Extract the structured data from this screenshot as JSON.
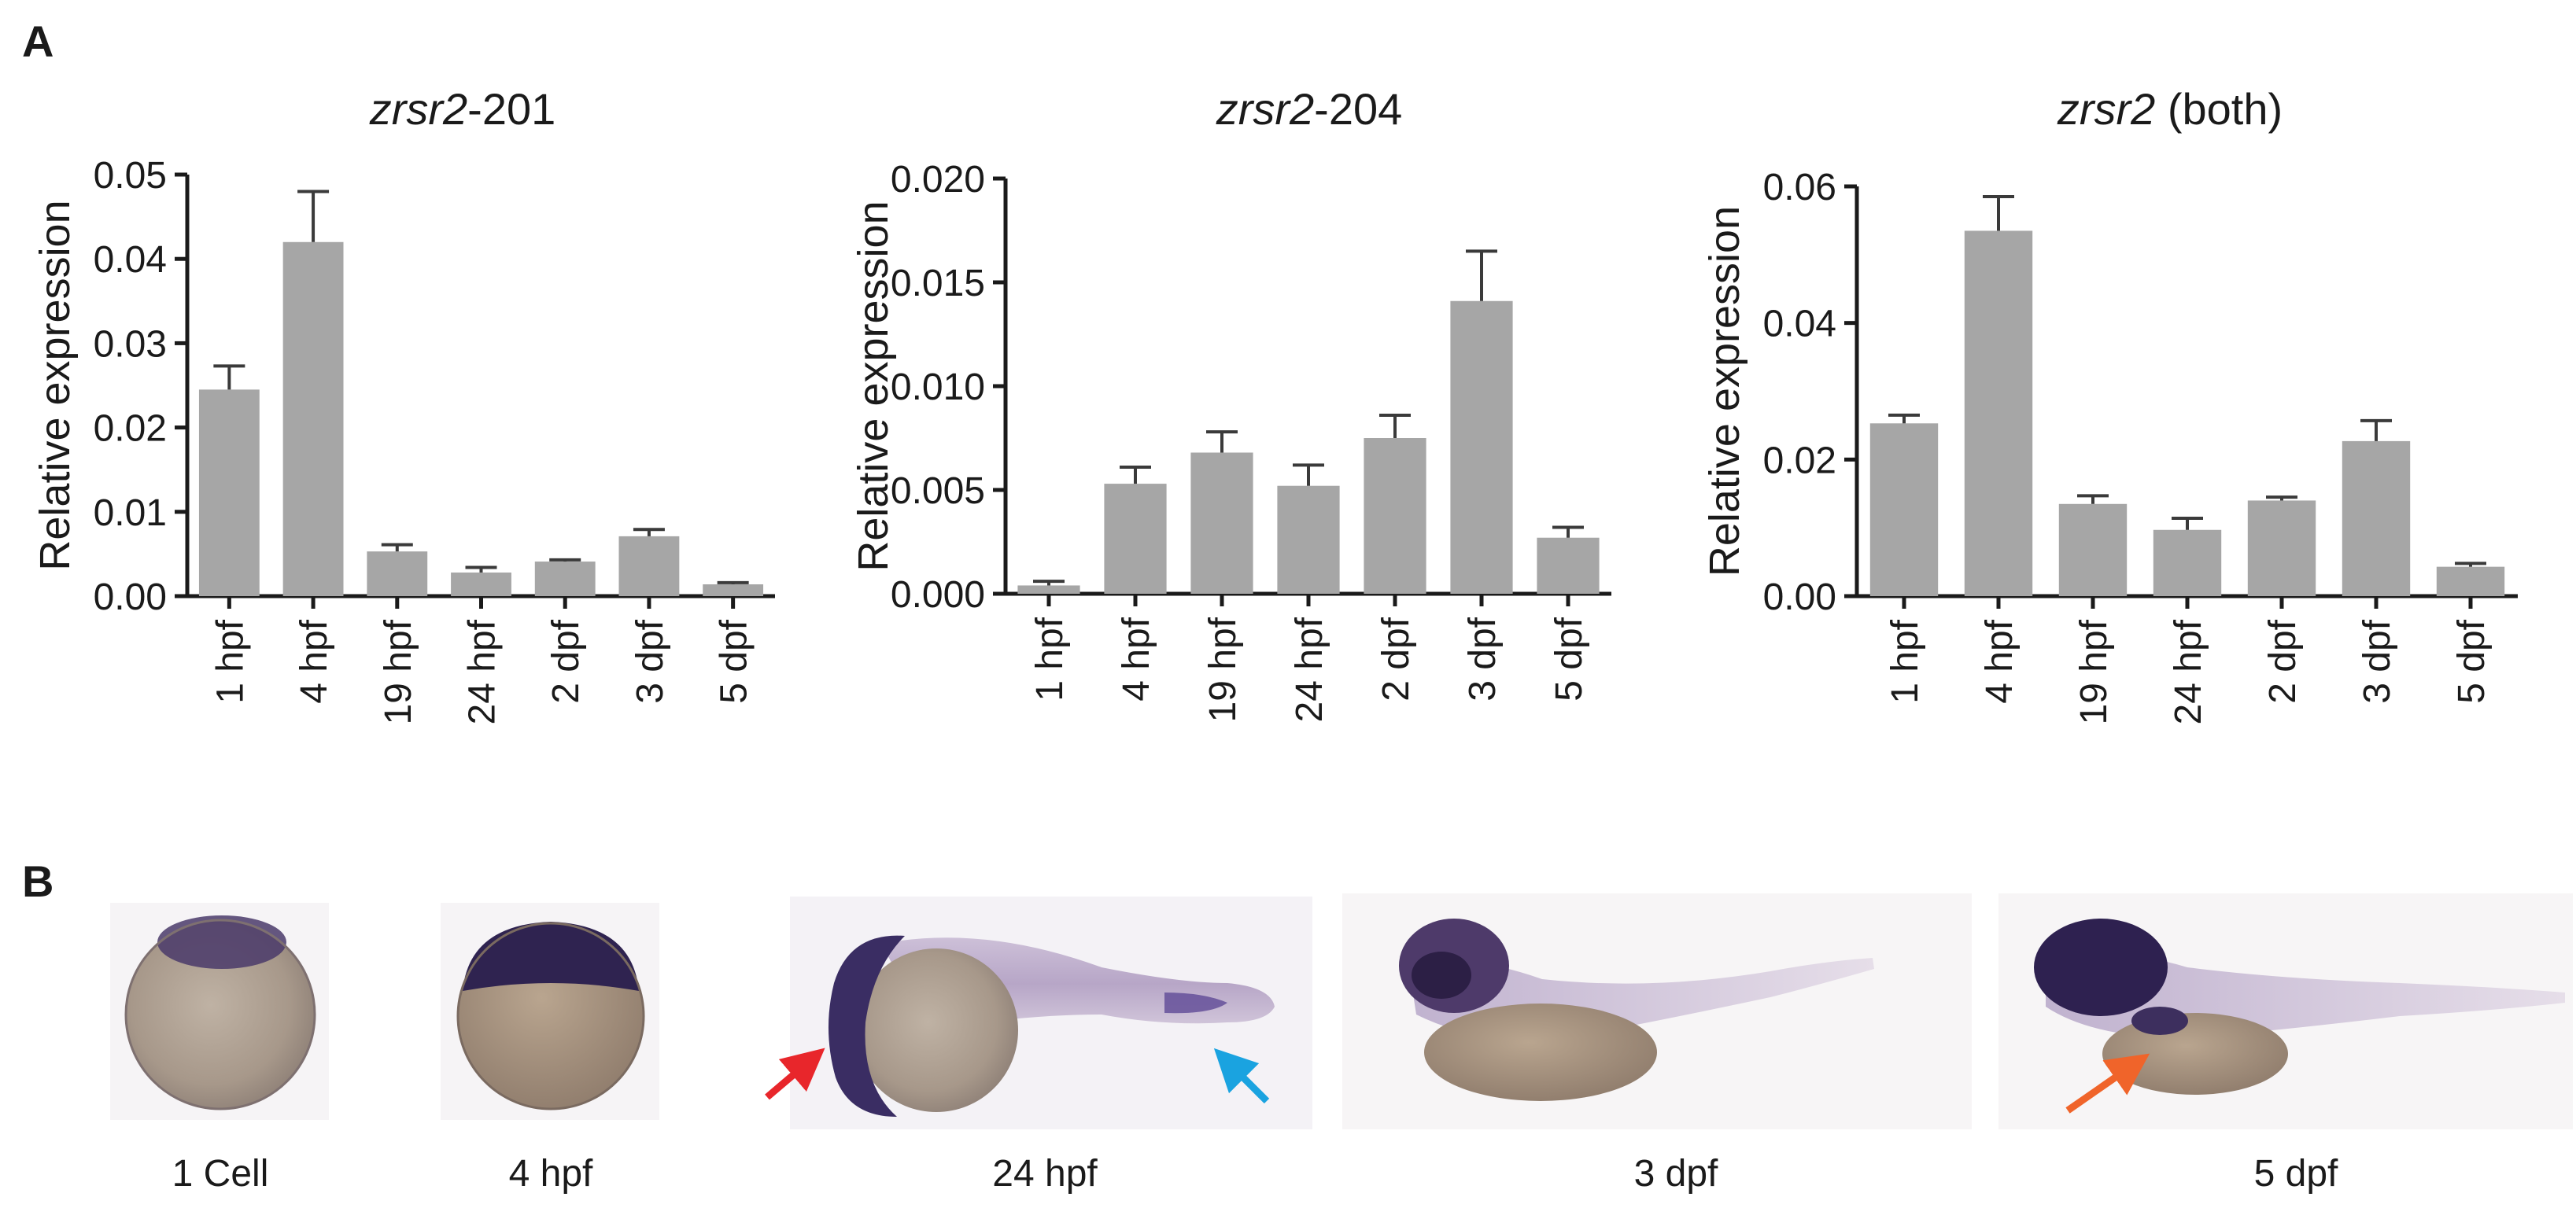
{
  "panels": {
    "a": "A",
    "b": "B"
  },
  "chart_data": [
    {
      "type": "bar",
      "title_italic": "zrsr2",
      "title_rest": "-201",
      "ylabel": "Relative expression",
      "xlabel": "",
      "ylim": [
        0,
        0.05
      ],
      "yticks": [
        "0.00",
        "0.01",
        "0.02",
        "0.03",
        "0.04",
        "0.05"
      ],
      "categories": [
        "1 hpf",
        "4 hpf",
        "19 hpf",
        "24 hpf",
        "2 dpf",
        "3 dpf",
        "5 dpf"
      ],
      "values": [
        0.0245,
        0.042,
        0.0053,
        0.0028,
        0.0041,
        0.0071,
        0.0014
      ],
      "errors": [
        0.0028,
        0.006,
        0.0008,
        0.0006,
        0.0002,
        0.0008,
        0.0002
      ],
      "bar_color": "#a6a6a6"
    },
    {
      "type": "bar",
      "title_italic": "zrsr2",
      "title_rest": "-204",
      "ylabel": "Relative expression",
      "xlabel": "",
      "ylim": [
        0,
        0.02
      ],
      "yticks": [
        "0.000",
        "0.005",
        "0.010",
        "0.015",
        "0.020"
      ],
      "categories": [
        "1 hpf",
        "4 hpf",
        "19 hpf",
        "24 hpf",
        "2 dpf",
        "3 dpf",
        "5 dpf"
      ],
      "values": [
        0.0004,
        0.0053,
        0.0068,
        0.0052,
        0.0075,
        0.0141,
        0.0027
      ],
      "errors": [
        0.0002,
        0.0008,
        0.001,
        0.001,
        0.0011,
        0.0024,
        0.0005
      ],
      "bar_color": "#a6a6a6"
    },
    {
      "type": "bar",
      "title_italic": "zrsr2",
      "title_rest": " (both)",
      "ylabel": "Relative expression",
      "xlabel": "",
      "ylim": [
        0,
        0.06
      ],
      "yticks": [
        "0.00",
        "0.02",
        "0.04",
        "0.06"
      ],
      "categories": [
        "1 hpf",
        "4 hpf",
        "19 hpf",
        "24 hpf",
        "2 dpf",
        "3 dpf",
        "5 dpf"
      ],
      "values": [
        0.0253,
        0.0535,
        0.0135,
        0.0097,
        0.014,
        0.0227,
        0.0043
      ],
      "errors": [
        0.0012,
        0.005,
        0.0012,
        0.0017,
        0.0005,
        0.003,
        0.0005
      ],
      "bar_color": "#a6a6a6"
    }
  ],
  "embryo_images": [
    {
      "caption": "1 Cell",
      "stage": "1-cell",
      "annotation_arrows": []
    },
    {
      "caption": "4 hpf",
      "stage": "4-hpf",
      "annotation_arrows": []
    },
    {
      "caption": "24 hpf",
      "stage": "24-hpf",
      "annotation_arrows": [
        {
          "color": "#e8262b"
        },
        {
          "color": "#1aa3e0"
        }
      ]
    },
    {
      "caption": "3 dpf",
      "stage": "3-dpf",
      "annotation_arrows": []
    },
    {
      "caption": "5 dpf",
      "stage": "5-dpf",
      "annotation_arrows": [
        {
          "color": "#f0642a"
        }
      ]
    }
  ]
}
